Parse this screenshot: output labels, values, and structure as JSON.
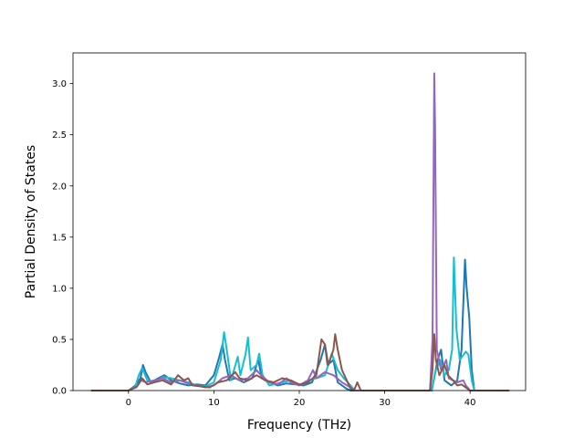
{
  "chart_data": {
    "type": "line",
    "title": "",
    "xlabel": "Frequency (THz)",
    "ylabel": "Partial Density of States",
    "xlim": [
      -6.5,
      46.5
    ],
    "ylim": [
      0.0,
      3.3
    ],
    "xticks": [
      0,
      10,
      20,
      30,
      40
    ],
    "yticks": [
      0.0,
      0.5,
      1.0,
      1.5,
      2.0,
      2.5,
      3.0
    ],
    "xtick_labels": [
      "0",
      "10",
      "20",
      "30",
      "40"
    ],
    "ytick_labels": [
      "0.0",
      "0.5",
      "1.0",
      "1.5",
      "2.0",
      "2.5",
      "3.0"
    ],
    "grid": false,
    "legend": "none",
    "series": [
      {
        "color": "#1f77b4",
        "points": [
          [
            -4.3,
            0
          ],
          [
            0,
            0
          ],
          [
            0.8,
            0.05
          ],
          [
            1.4,
            0.12
          ],
          [
            1.7,
            0.25
          ],
          [
            2.0,
            0.18
          ],
          [
            2.6,
            0.08
          ],
          [
            3.5,
            0.12
          ],
          [
            4.2,
            0.15
          ],
          [
            5.0,
            0.1
          ],
          [
            6.0,
            0.07
          ],
          [
            7.0,
            0.05
          ],
          [
            8.0,
            0.06
          ],
          [
            9.0,
            0.05
          ],
          [
            10.0,
            0.15
          ],
          [
            10.6,
            0.32
          ],
          [
            11.0,
            0.45
          ],
          [
            11.3,
            0.3
          ],
          [
            11.8,
            0.1
          ],
          [
            12.5,
            0.12
          ],
          [
            13.5,
            0.08
          ],
          [
            14.5,
            0.12
          ],
          [
            15.2,
            0.3
          ],
          [
            15.6,
            0.12
          ],
          [
            16.5,
            0.08
          ],
          [
            17.5,
            0.05
          ],
          [
            18.5,
            0.07
          ],
          [
            19.5,
            0.06
          ],
          [
            20.5,
            0.05
          ],
          [
            21.5,
            0.08
          ],
          [
            22.5,
            0.3
          ],
          [
            23.0,
            0.45
          ],
          [
            23.3,
            0.25
          ],
          [
            24.0,
            0.3
          ],
          [
            24.5,
            0.08
          ],
          [
            25.5,
            0.02
          ],
          [
            26.0,
            0
          ],
          [
            35.5,
            0
          ],
          [
            36.2,
            0.3
          ],
          [
            36.6,
            0.4
          ],
          [
            37.0,
            0.1
          ],
          [
            37.8,
            0.05
          ],
          [
            38.5,
            0.1
          ],
          [
            39.0,
            0.4
          ],
          [
            39.4,
            1.28
          ],
          [
            39.6,
            1.0
          ],
          [
            39.9,
            0.72
          ],
          [
            40.2,
            0.2
          ],
          [
            40.5,
            0
          ],
          [
            44.5,
            0
          ]
        ]
      },
      {
        "color": "#17becf",
        "points": [
          [
            -4.3,
            0
          ],
          [
            0,
            0
          ],
          [
            0.8,
            0.04
          ],
          [
            1.2,
            0.15
          ],
          [
            1.6,
            0.22
          ],
          [
            2.2,
            0.1
          ],
          [
            3.0,
            0.08
          ],
          [
            4.0,
            0.13
          ],
          [
            5.0,
            0.12
          ],
          [
            6.0,
            0.1
          ],
          [
            7.0,
            0.08
          ],
          [
            8.0,
            0.05
          ],
          [
            9.0,
            0.04
          ],
          [
            10.0,
            0.08
          ],
          [
            10.8,
            0.3
          ],
          [
            11.2,
            0.57
          ],
          [
            11.5,
            0.4
          ],
          [
            12.0,
            0.1
          ],
          [
            12.8,
            0.33
          ],
          [
            13.1,
            0.15
          ],
          [
            13.7,
            0.35
          ],
          [
            14.0,
            0.52
          ],
          [
            14.3,
            0.2
          ],
          [
            15.0,
            0.25
          ],
          [
            15.3,
            0.36
          ],
          [
            15.7,
            0.15
          ],
          [
            16.5,
            0.05
          ],
          [
            18.0,
            0.08
          ],
          [
            19.0,
            0.1
          ],
          [
            20.0,
            0.05
          ],
          [
            21.0,
            0.1
          ],
          [
            22.0,
            0.12
          ],
          [
            23.0,
            0.15
          ],
          [
            23.8,
            0.36
          ],
          [
            24.5,
            0.2
          ],
          [
            25.2,
            0.12
          ],
          [
            26.0,
            0.05
          ],
          [
            26.5,
            0
          ],
          [
            35.5,
            0
          ],
          [
            36.0,
            0.2
          ],
          [
            36.5,
            0.3
          ],
          [
            37.0,
            0.15
          ],
          [
            37.5,
            0.2
          ],
          [
            37.9,
            0.4
          ],
          [
            38.1,
            1.3
          ],
          [
            38.4,
            0.6
          ],
          [
            38.8,
            0.3
          ],
          [
            39.5,
            0.38
          ],
          [
            39.8,
            0.35
          ],
          [
            40.2,
            0.1
          ],
          [
            40.5,
            0
          ],
          [
            44.5,
            0
          ]
        ]
      },
      {
        "color": "#9467bd",
        "points": [
          [
            -4.3,
            0
          ],
          [
            0,
            0
          ],
          [
            0.9,
            0.03
          ],
          [
            1.5,
            0.1
          ],
          [
            2.0,
            0.08
          ],
          [
            3.0,
            0.1
          ],
          [
            4.0,
            0.12
          ],
          [
            5.0,
            0.08
          ],
          [
            6.0,
            0.1
          ],
          [
            7.0,
            0.07
          ],
          [
            8.0,
            0.05
          ],
          [
            9.0,
            0.03
          ],
          [
            10.0,
            0.05
          ],
          [
            11.0,
            0.12
          ],
          [
            12.0,
            0.15
          ],
          [
            13.0,
            0.1
          ],
          [
            14.0,
            0.12
          ],
          [
            15.0,
            0.2
          ],
          [
            15.5,
            0.15
          ],
          [
            16.5,
            0.08
          ],
          [
            17.5,
            0.06
          ],
          [
            18.5,
            0.12
          ],
          [
            19.0,
            0.08
          ],
          [
            20.0,
            0.05
          ],
          [
            21.0,
            0.1
          ],
          [
            21.6,
            0.2
          ],
          [
            22.0,
            0.12
          ],
          [
            23.0,
            0.18
          ],
          [
            24.0,
            0.15
          ],
          [
            25.0,
            0.08
          ],
          [
            26.0,
            0.03
          ],
          [
            26.5,
            0
          ],
          [
            35.3,
            0
          ],
          [
            35.6,
            0.5
          ],
          [
            35.8,
            3.1
          ],
          [
            35.9,
            2.6
          ],
          [
            36.1,
            0.4
          ],
          [
            36.6,
            0.2
          ],
          [
            37.2,
            0.3
          ],
          [
            37.5,
            0.12
          ],
          [
            38.0,
            0.1
          ],
          [
            38.5,
            0.08
          ],
          [
            39.2,
            0.1
          ],
          [
            39.5,
            0.05
          ],
          [
            40.0,
            0
          ],
          [
            44.5,
            0
          ]
        ]
      },
      {
        "color": "#8c564b",
        "points": [
          [
            -4.3,
            0
          ],
          [
            0,
            0
          ],
          [
            1.0,
            0.04
          ],
          [
            1.6,
            0.12
          ],
          [
            2.2,
            0.06
          ],
          [
            3.0,
            0.08
          ],
          [
            4.0,
            0.1
          ],
          [
            5.0,
            0.06
          ],
          [
            5.8,
            0.15
          ],
          [
            6.5,
            0.1
          ],
          [
            7.0,
            0.12
          ],
          [
            7.5,
            0.05
          ],
          [
            8.5,
            0.04
          ],
          [
            9.5,
            0.03
          ],
          [
            10.5,
            0.08
          ],
          [
            11.5,
            0.1
          ],
          [
            12.5,
            0.18
          ],
          [
            13.0,
            0.12
          ],
          [
            14.0,
            0.1
          ],
          [
            15.0,
            0.15
          ],
          [
            16.0,
            0.1
          ],
          [
            17.0,
            0.08
          ],
          [
            18.0,
            0.12
          ],
          [
            19.0,
            0.1
          ],
          [
            20.0,
            0.06
          ],
          [
            21.0,
            0.08
          ],
          [
            22.0,
            0.15
          ],
          [
            22.6,
            0.5
          ],
          [
            23.0,
            0.45
          ],
          [
            23.4,
            0.25
          ],
          [
            24.0,
            0.4
          ],
          [
            24.2,
            0.55
          ],
          [
            24.5,
            0.4
          ],
          [
            25.0,
            0.2
          ],
          [
            26.0,
            0.02
          ],
          [
            26.4,
            0
          ],
          [
            26.8,
            0.08
          ],
          [
            27.2,
            0
          ],
          [
            35.3,
            0
          ],
          [
            35.6,
            0.2
          ],
          [
            35.8,
            0.55
          ],
          [
            36.0,
            0.3
          ],
          [
            36.4,
            0.15
          ],
          [
            37.0,
            0.25
          ],
          [
            37.4,
            0.15
          ],
          [
            38.0,
            0.1
          ],
          [
            38.5,
            0.05
          ],
          [
            39.0,
            0.06
          ],
          [
            40.0,
            0
          ],
          [
            44.5,
            0
          ]
        ]
      }
    ]
  }
}
